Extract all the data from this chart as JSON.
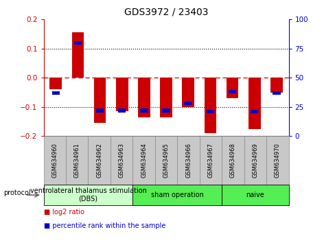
{
  "title": "GDS3972 / 23403",
  "samples": [
    "GSM634960",
    "GSM634961",
    "GSM634962",
    "GSM634963",
    "GSM634964",
    "GSM634965",
    "GSM634966",
    "GSM634967",
    "GSM634968",
    "GSM634969",
    "GSM634970"
  ],
  "log2_ratio": [
    -0.04,
    0.155,
    -0.155,
    -0.115,
    -0.135,
    -0.135,
    -0.1,
    -0.19,
    -0.07,
    -0.175,
    -0.05
  ],
  "percentile_rank": [
    37,
    80,
    22,
    22,
    22,
    22,
    28,
    21,
    38,
    21,
    37
  ],
  "ylim": [
    -0.2,
    0.2
  ],
  "y2lim": [
    0,
    100
  ],
  "yticks": [
    -0.2,
    -0.1,
    0,
    0.1,
    0.2
  ],
  "y2ticks": [
    0,
    25,
    50,
    75,
    100
  ],
  "bar_width": 0.55,
  "red_color": "#cc0000",
  "blue_color": "#0000cc",
  "groups": [
    {
      "label": "ventrolateral thalamus stimulation\n(DBS)",
      "start": 0,
      "end": 3,
      "color": "#ccffcc"
    },
    {
      "label": "sham operation",
      "start": 4,
      "end": 7,
      "color": "#55ee55"
    },
    {
      "label": "naive",
      "start": 8,
      "end": 10,
      "color": "#55ee55"
    }
  ],
  "legend_red": "log2 ratio",
  "legend_blue": "percentile rank within the sample",
  "protocol_label": "protocol",
  "background_color": "#ffffff",
  "xticklabel_fontsize": 6,
  "yticklabel_fontsize": 7.5,
  "title_fontsize": 10,
  "group_label_fontsize": 7,
  "sample_box_color": "#c8c8c8",
  "sample_box_edge": "#888888"
}
